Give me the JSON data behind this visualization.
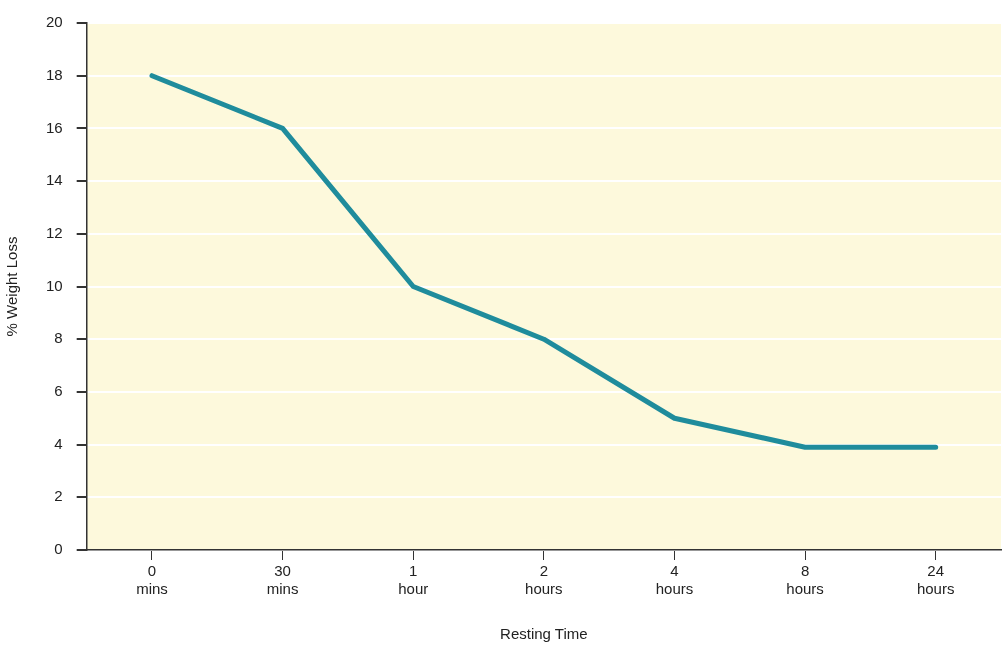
{
  "chart_data": {
    "type": "line",
    "xlabel": "Resting Time",
    "ylabel": "% Weight Loss",
    "categories": [
      "0 mins",
      "30 mins",
      "1 hour",
      "2 hours",
      "4 hours",
      "8 hours",
      "24 hours"
    ],
    "values": [
      18,
      16,
      10,
      8,
      5,
      3.9,
      3.9
    ],
    "color": "#1f8c9c",
    "ylim": [
      0,
      20
    ],
    "yticks": [
      0,
      2,
      4,
      6,
      8,
      10,
      12,
      14,
      16,
      18,
      20
    ],
    "grid": "y",
    "legend": false,
    "marker": "none",
    "line_style": "solid"
  }
}
